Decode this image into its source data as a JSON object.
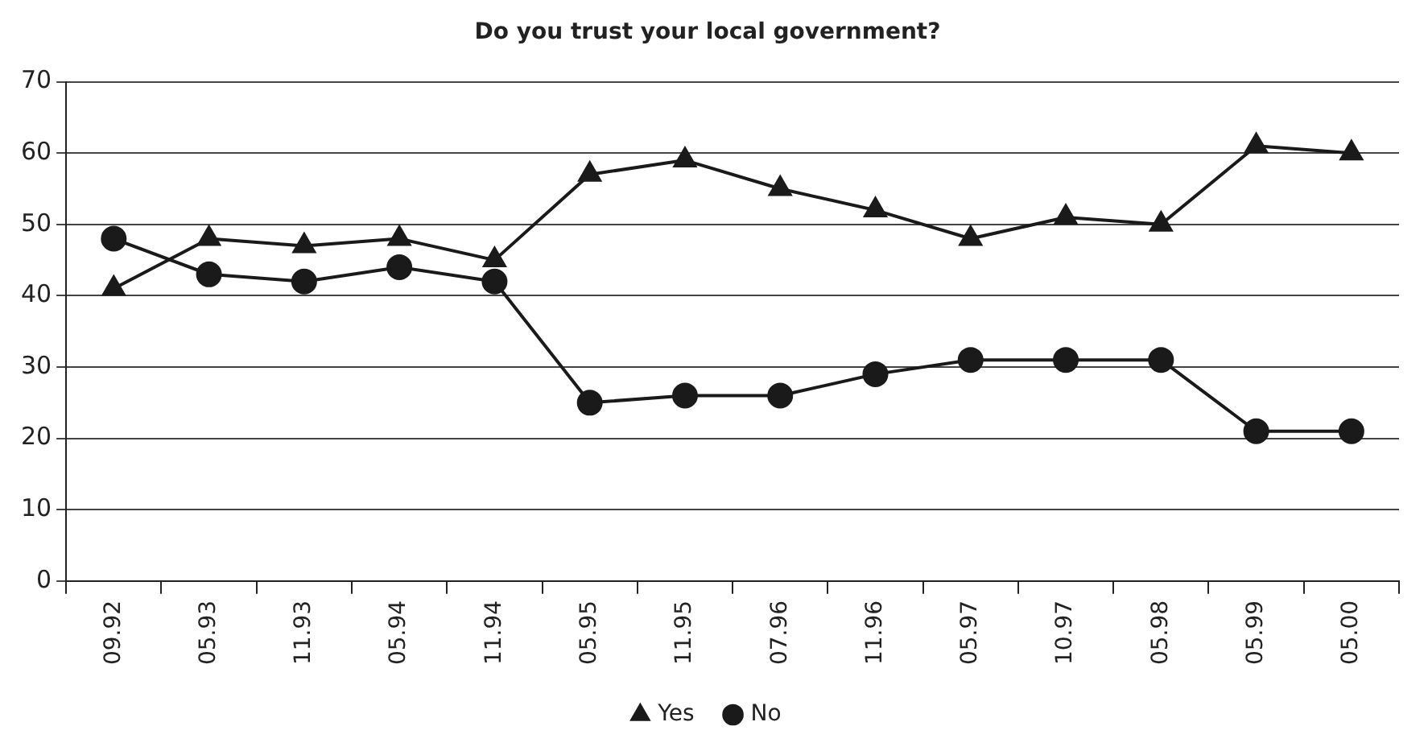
{
  "chart_data": {
    "type": "line",
    "title": "Do you trust your local government?",
    "categories": [
      "09.92",
      "05.93",
      "11.93",
      "05.94",
      "11.94",
      "05.95",
      "11.95",
      "07.96",
      "11.96",
      "05.97",
      "10.97",
      "05.98",
      "05.99",
      "05.00"
    ],
    "series": [
      {
        "name": "Yes",
        "color": "#1a1a1a",
        "marker": "triangle",
        "values": [
          41,
          48,
          47,
          48,
          45,
          57,
          59,
          55,
          52,
          48,
          51,
          50,
          61,
          60
        ]
      },
      {
        "name": "No",
        "color": "#1a1a1a",
        "marker": "circle",
        "values": [
          48,
          43,
          42,
          44,
          42,
          25,
          26,
          26,
          29,
          31,
          31,
          31,
          21,
          21
        ]
      }
    ],
    "ylim": [
      0,
      70
    ],
    "yticks": [
      0,
      10,
      20,
      30,
      40,
      50,
      60,
      70
    ],
    "grid": "y",
    "legend": "bottom",
    "line_style": "solid"
  }
}
